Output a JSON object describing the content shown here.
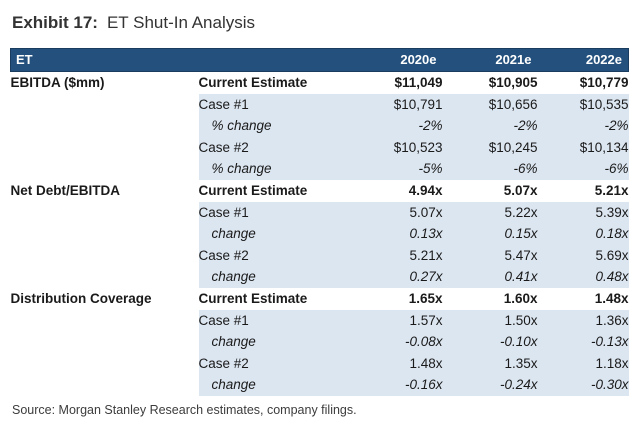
{
  "title": {
    "prefix": "Exhibit 17:",
    "text": "ET Shut-In Analysis"
  },
  "source": "Source: Morgan Stanley Research estimates, company filings.",
  "colors": {
    "header_bg": "#23507C",
    "header_border": "#1A3C5E",
    "row_shade": "#DCE6F1",
    "header_text": "#FFFFFF"
  },
  "table": {
    "header": {
      "label": "ET",
      "columns": [
        "2020e",
        "2021e",
        "2022e"
      ]
    },
    "rows": [
      {
        "section": "EBITDA ($mm)",
        "label": "Current Estimate",
        "style": "estimate",
        "values": [
          "$11,049",
          "$10,905",
          "$10,779"
        ]
      },
      {
        "section": "",
        "label": "Case #1",
        "style": "case",
        "values": [
          "$10,791",
          "$10,656",
          "$10,535"
        ]
      },
      {
        "section": "",
        "label": "% change",
        "style": "change",
        "values": [
          "-2%",
          "-2%",
          "-2%"
        ]
      },
      {
        "section": "",
        "label": "Case #2",
        "style": "case",
        "values": [
          "$10,523",
          "$10,245",
          "$10,134"
        ]
      },
      {
        "section": "",
        "label": "% change",
        "style": "change",
        "values": [
          "-5%",
          "-6%",
          "-6%"
        ]
      },
      {
        "section": "Net Debt/EBITDA",
        "label": "Current Estimate",
        "style": "estimate",
        "values": [
          "4.94x",
          "5.07x",
          "5.21x"
        ]
      },
      {
        "section": "",
        "label": "Case #1",
        "style": "case",
        "values": [
          "5.07x",
          "5.22x",
          "5.39x"
        ]
      },
      {
        "section": "",
        "label": "change",
        "style": "change",
        "values": [
          "0.13x",
          "0.15x",
          "0.18x"
        ]
      },
      {
        "section": "",
        "label": "Case #2",
        "style": "case",
        "values": [
          "5.21x",
          "5.47x",
          "5.69x"
        ]
      },
      {
        "section": "",
        "label": "change",
        "style": "change",
        "values": [
          "0.27x",
          "0.41x",
          "0.48x"
        ]
      },
      {
        "section": "Distribution Coverage",
        "label": "Current Estimate",
        "style": "estimate",
        "values": [
          "1.65x",
          "1.60x",
          "1.48x"
        ]
      },
      {
        "section": "",
        "label": "Case #1",
        "style": "case",
        "values": [
          "1.57x",
          "1.50x",
          "1.36x"
        ]
      },
      {
        "section": "",
        "label": "change",
        "style": "change",
        "values": [
          "-0.08x",
          "-0.10x",
          "-0.13x"
        ]
      },
      {
        "section": "",
        "label": "Case #2",
        "style": "case",
        "values": [
          "1.48x",
          "1.35x",
          "1.18x"
        ]
      },
      {
        "section": "",
        "label": "change",
        "style": "change",
        "values": [
          "-0.16x",
          "-0.24x",
          "-0.30x"
        ]
      }
    ]
  }
}
